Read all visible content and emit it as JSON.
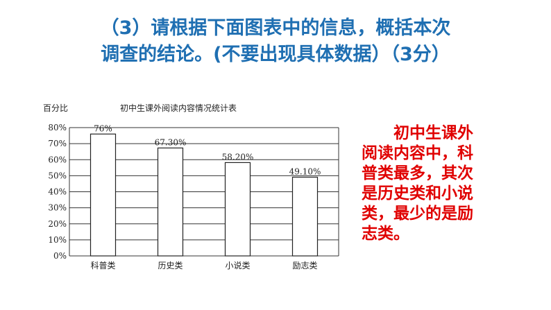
{
  "question": {
    "line1": "（3）请根据下面图表中的信息，概括本次",
    "line2": "调查的结论。(不要出现具体数据）（3分）"
  },
  "chart_data": {
    "type": "bar",
    "title": "初中生课外阅读内容情况统计表",
    "ylabel": "百分比",
    "xlabel": "",
    "categories": [
      "科普类",
      "历史类",
      "小说类",
      "励志类"
    ],
    "values": [
      76,
      67.3,
      58.2,
      49.1
    ],
    "data_labels": [
      "76%",
      "67.30%",
      "58.20%",
      "49.10%"
    ],
    "ylim": [
      0,
      80
    ],
    "yticks": [
      0,
      10,
      20,
      30,
      40,
      50,
      60,
      70,
      80
    ],
    "ytick_labels": [
      "0%",
      "10%",
      "20%",
      "30%",
      "40%",
      "50%",
      "60%",
      "70%",
      "80%"
    ],
    "grid": true,
    "legend": "none"
  },
  "answer": {
    "line1": "初中生课外",
    "line2": "阅读内容中，科",
    "line3": "普类最多，其次",
    "line4": "是历史类和小说",
    "line5": "类，最少的是励",
    "line6": "志类。"
  }
}
